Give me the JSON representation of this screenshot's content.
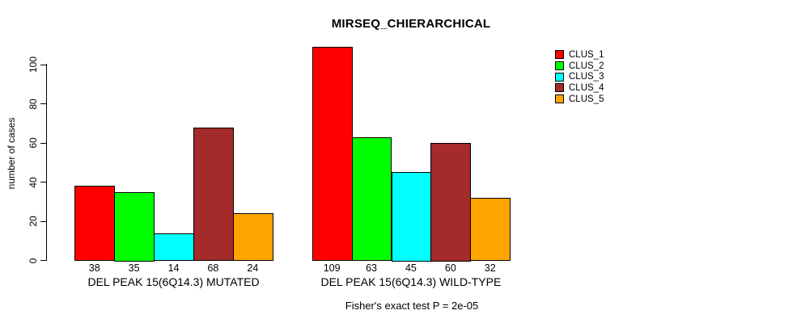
{
  "title": "MIRSEQ_CHIERARCHICAL",
  "footnote": "Fisher's exact test P = 2e-05",
  "colors": {
    "background": "#ffffff",
    "axis": "#000000",
    "clus_1": "#FF0000",
    "clus_2": "#00FF00",
    "clus_3": "#00FFFF",
    "clus_4": "#A52A2A",
    "clus_5": "#FFA500"
  },
  "legend": {
    "position": "top-right",
    "entries": [
      {
        "label": "CLUS_1",
        "color": "#FF0000"
      },
      {
        "label": "CLUS_2",
        "color": "#00FF00"
      },
      {
        "label": "CLUS_3",
        "color": "#00FFFF"
      },
      {
        "label": "CLUS_4",
        "color": "#A52A2A"
      },
      {
        "label": "CLUS_5",
        "color": "#FFA500"
      }
    ]
  },
  "chart_data": {
    "type": "bar",
    "title": "MIRSEQ_CHIERARCHICAL",
    "xlabel": "",
    "ylabel": "number of cases",
    "categories": [
      "DEL PEAK 15(6Q14.3) MUTATED",
      "DEL PEAK 15(6Q14.3) WILD-TYPE"
    ],
    "series": [
      {
        "name": "CLUS_1",
        "color": "#FF0000",
        "values": [
          38,
          109
        ]
      },
      {
        "name": "CLUS_2",
        "color": "#00FF00",
        "values": [
          35,
          63
        ]
      },
      {
        "name": "CLUS_3",
        "color": "#00FFFF",
        "values": [
          14,
          45
        ]
      },
      {
        "name": "CLUS_4",
        "color": "#A52A2A",
        "values": [
          68,
          60
        ]
      },
      {
        "name": "CLUS_5",
        "color": "#FFA500",
        "values": [
          24,
          32
        ]
      }
    ],
    "bar_value_labels": [
      [
        38,
        35,
        14,
        68,
        24
      ],
      [
        109,
        63,
        45,
        60,
        32
      ]
    ],
    "y_ticks": [
      0,
      20,
      40,
      60,
      80,
      100
    ],
    "ylim": [
      0,
      110
    ],
    "grid": false,
    "legend_position": "top-right",
    "footnote": "Fisher's exact test P = 2e-05"
  }
}
